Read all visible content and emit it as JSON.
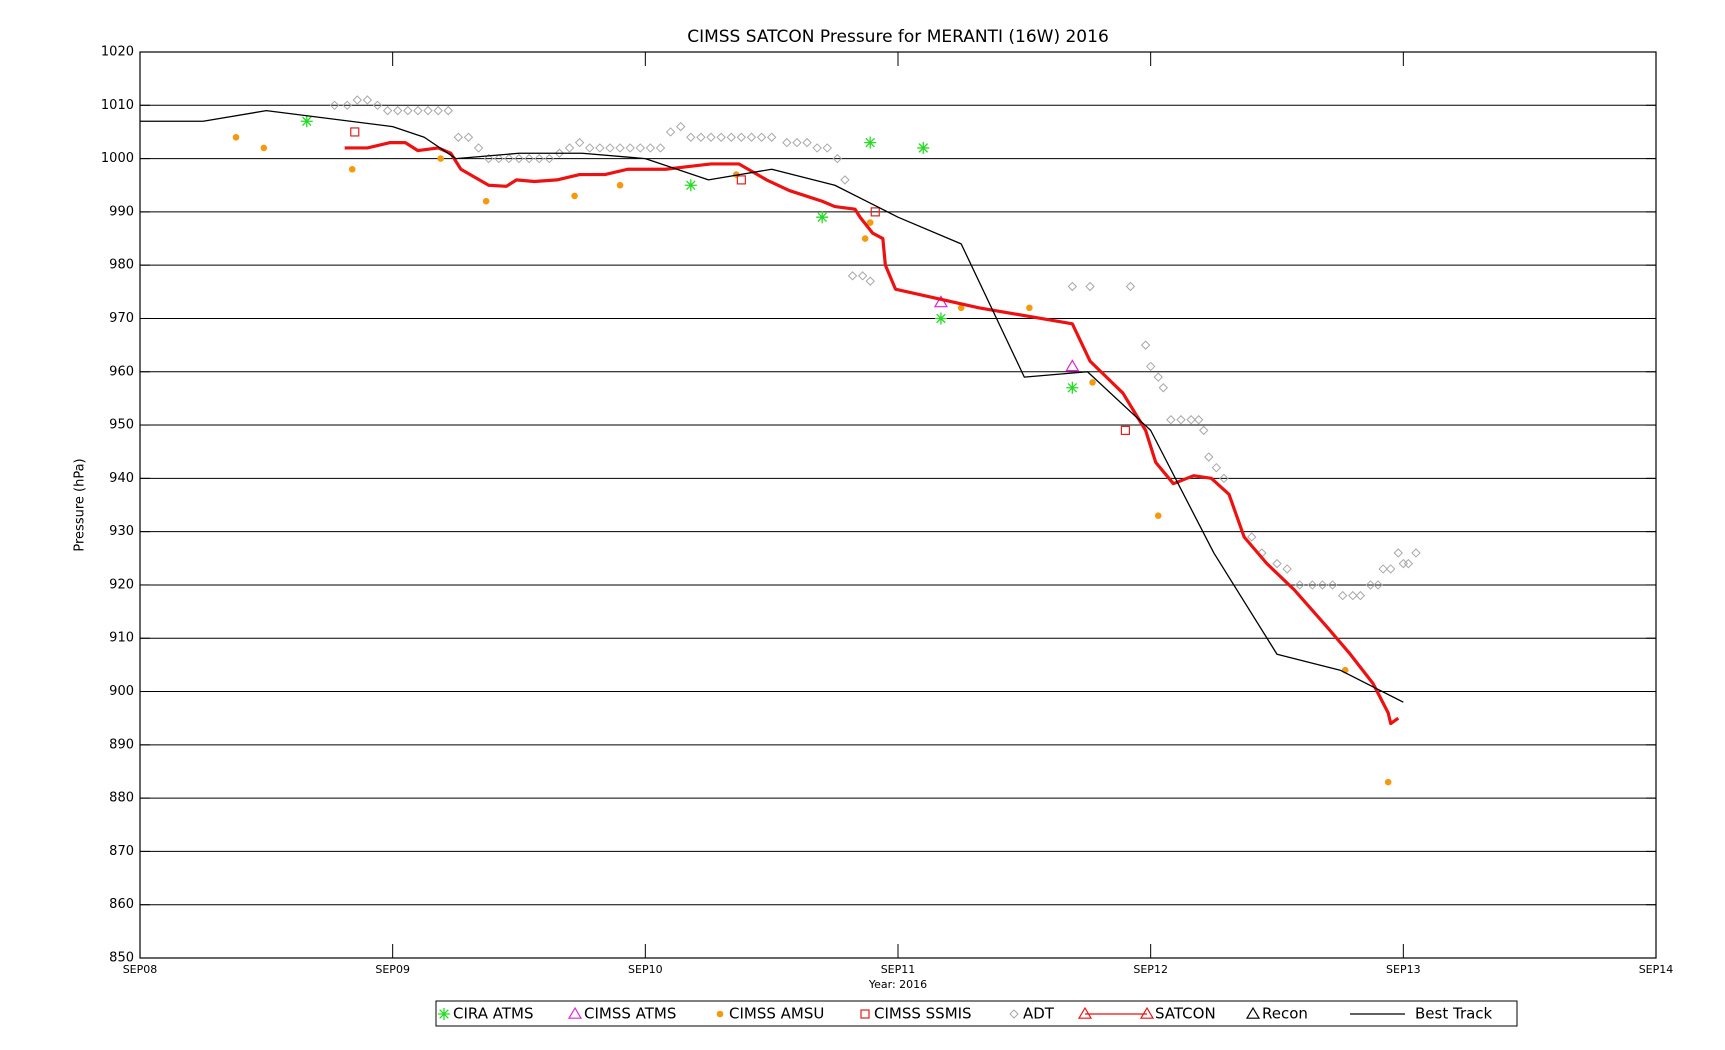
{
  "chart_data": {
    "type": "scatter",
    "title": "CIMSS SATCON Pressure for MERANTI (16W) 2016",
    "x_label": "Year: 2016",
    "y_label": "Pressure (hPa)",
    "xlim": [
      0,
      6
    ],
    "xticks": [
      {
        "value": 0,
        "label": "SEP08"
      },
      {
        "value": 1,
        "label": "SEP09"
      },
      {
        "value": 2,
        "label": "SEP10"
      },
      {
        "value": 3,
        "label": "SEP11"
      },
      {
        "value": 4,
        "label": "SEP12"
      },
      {
        "value": 5,
        "label": "SEP13"
      },
      {
        "value": 6,
        "label": "SEP14"
      }
    ],
    "ylim": [
      850,
      1020
    ],
    "yticks": [
      850,
      860,
      870,
      880,
      890,
      900,
      910,
      920,
      930,
      940,
      950,
      960,
      970,
      980,
      990,
      1000,
      1010,
      1020
    ],
    "grid": true,
    "legend": "bottom",
    "series": [
      {
        "name": "CIRA ATMS",
        "color": "#22dd22",
        "marker": "asterisk",
        "x": [
          0.66,
          2.18,
          2.7,
          2.89,
          3.1,
          3.17,
          3.69
        ],
        "values": [
          1007,
          995,
          989,
          1003,
          1002,
          970,
          957
        ]
      },
      {
        "name": "CIMSS ATMS",
        "color": "#dd22dd",
        "marker": "triangle",
        "x": [
          3.17,
          3.69
        ],
        "values": [
          973,
          961
        ]
      },
      {
        "name": "CIMSS AMSU",
        "color": "#f59a0e",
        "marker": "circle",
        "x": [
          0.38,
          0.49,
          0.84,
          1.19,
          1.37,
          1.72,
          1.9,
          2.36,
          2.87,
          2.89,
          3.25,
          3.52,
          3.77,
          4.03,
          4.77,
          4.94
        ],
        "values": [
          1004,
          1002,
          998,
          1000,
          992,
          993,
          995,
          997,
          985,
          988,
          972,
          972,
          958,
          933,
          904,
          883
        ]
      },
      {
        "name": "CIMSS SSMIS",
        "color": "#e02020",
        "marker": "square",
        "x": [
          0.85,
          2.38,
          2.91,
          3.9
        ],
        "values": [
          1005,
          996,
          990,
          949
        ]
      },
      {
        "name": "ADT",
        "color": "#a8a8a8",
        "marker": "diamond",
        "x": [
          0.77,
          0.82,
          0.86,
          0.9,
          0.94,
          0.98,
          1.02,
          1.06,
          1.1,
          1.14,
          1.18,
          1.22,
          1.26,
          1.3,
          1.34,
          1.38,
          1.42,
          1.46,
          1.5,
          1.54,
          1.58,
          1.62,
          1.66,
          1.7,
          1.74,
          1.78,
          1.82,
          1.86,
          1.9,
          1.94,
          1.98,
          2.02,
          2.06,
          2.1,
          2.14,
          2.18,
          2.22,
          2.26,
          2.3,
          2.34,
          2.38,
          2.42,
          2.46,
          2.5,
          2.56,
          2.6,
          2.64,
          2.68,
          2.72,
          2.76,
          2.79,
          2.82,
          2.86,
          2.89,
          3.69,
          3.76,
          3.92,
          3.98,
          4.0,
          4.03,
          4.05,
          4.08,
          4.12,
          4.16,
          4.19,
          4.21,
          4.23,
          4.26,
          4.29,
          4.4,
          4.44,
          4.5,
          4.54,
          4.59,
          4.64,
          4.68,
          4.72,
          4.76,
          4.8,
          4.83,
          4.87,
          4.9,
          4.92,
          4.95,
          4.98,
          5.0,
          5.02,
          5.05
        ],
        "values": [
          1010,
          1010,
          1011,
          1011,
          1010,
          1009,
          1009,
          1009,
          1009,
          1009,
          1009,
          1009,
          1004,
          1004,
          1002,
          1000,
          1000,
          1000,
          1000,
          1000,
          1000,
          1000,
          1001,
          1002,
          1003,
          1002,
          1002,
          1002,
          1002,
          1002,
          1002,
          1002,
          1002,
          1005,
          1006,
          1004,
          1004,
          1004,
          1004,
          1004,
          1004,
          1004,
          1004,
          1004,
          1003,
          1003,
          1003,
          1002,
          1002,
          1000,
          996,
          978,
          978,
          977,
          976,
          976,
          976,
          965,
          961,
          959,
          957,
          951,
          951,
          951,
          951,
          949,
          944,
          942,
          940,
          929,
          926,
          924,
          923,
          920,
          920,
          920,
          920,
          918,
          918,
          918,
          920,
          920,
          923,
          923,
          926,
          924,
          924,
          926
        ]
      },
      {
        "name": "SATCON",
        "color": "#ee1111",
        "marker": "line-triangle",
        "x": [
          0.81,
          0.9,
          0.99,
          1.05,
          1.1,
          1.18,
          1.23,
          1.27,
          1.38,
          1.45,
          1.49,
          1.56,
          1.65,
          1.74,
          1.84,
          1.93,
          2.08,
          2.17,
          2.26,
          2.37,
          2.48,
          2.57,
          2.7,
          2.75,
          2.83,
          2.85,
          2.9,
          2.94,
          2.95,
          2.99,
          3.32,
          3.69,
          3.76,
          3.89,
          3.98,
          4.02,
          4.09,
          4.17,
          4.24,
          4.31,
          4.37,
          4.46,
          4.57,
          4.7,
          4.79,
          4.88,
          4.94,
          4.95,
          4.98
        ],
        "values": [
          1002,
          1002,
          1003,
          1003,
          1001.5,
          1002,
          1001,
          998,
          995,
          994.8,
          996,
          995.7,
          996,
          997,
          997,
          998,
          998,
          998.5,
          999,
          999,
          996,
          994,
          992,
          991,
          990.5,
          989,
          986,
          985,
          980,
          975.5,
          972,
          969,
          962,
          956,
          949,
          943,
          939,
          940.5,
          940,
          937,
          929,
          924,
          919,
          912,
          907,
          901.5,
          896,
          894,
          895
        ]
      },
      {
        "name": "Recon",
        "color": "#000000",
        "marker": "triangle",
        "x": [],
        "values": []
      },
      {
        "name": "Best Track",
        "color": "#000000",
        "marker": "line",
        "x": [
          0,
          0.25,
          0.5,
          1.0,
          1.125,
          1.25,
          1.5,
          1.75,
          2.0,
          2.25,
          2.5,
          2.75,
          2.875,
          3.0,
          3.25,
          3.5,
          3.75,
          4.0,
          4.25,
          4.5,
          4.75,
          5.0
        ],
        "values": [
          1007,
          1007,
          1009,
          1006,
          1004,
          1000,
          1001,
          1001,
          1000,
          996,
          998,
          995,
          992,
          989,
          984,
          959,
          960,
          949,
          926,
          907,
          904,
          898
        ]
      }
    ]
  }
}
